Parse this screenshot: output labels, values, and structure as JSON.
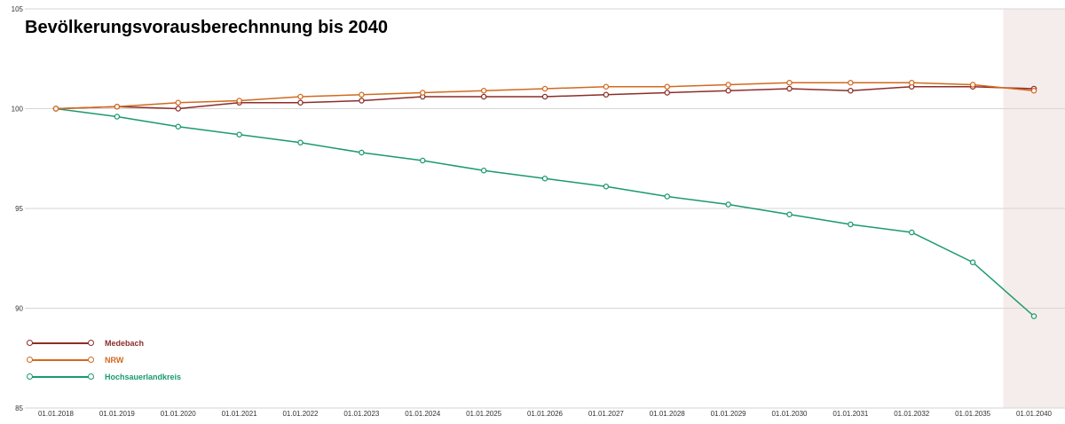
{
  "title": "Bevölkerungsvorausberechnnung bis 2040",
  "chart_data": {
    "type": "line",
    "title": "Bevölkerungsvorausberechnnung bis 2040",
    "xlabel": "",
    "ylabel": "",
    "categories": [
      "01.01.2018",
      "01.01.2019",
      "01.01.2020",
      "01.01.2021",
      "01.01.2022",
      "01.01.2023",
      "01.01.2024",
      "01.01.2025",
      "01.01.2026",
      "01.01.2027",
      "01.01.2028",
      "01.01.2029",
      "01.01.2030",
      "01.01.2031",
      "01.01.2032",
      "01.01.2035",
      "01.01.2040"
    ],
    "ylim": [
      85,
      105
    ],
    "yticks": [
      85,
      90,
      95,
      100,
      105
    ],
    "grid": true,
    "legend_position": "bottom-left",
    "highlight_region": "01.01.2040",
    "highlight_color": "#f5ecec",
    "series": [
      {
        "name": "Medebach",
        "color": "#8b2e2a",
        "values": [
          100,
          100.1,
          100.0,
          100.3,
          100.3,
          100.4,
          100.6,
          100.6,
          100.6,
          100.7,
          100.8,
          100.9,
          101.0,
          100.9,
          101.1,
          101.1,
          101.0
        ]
      },
      {
        "name": "NRW",
        "color": "#d2691e",
        "values": [
          100,
          100.1,
          100.3,
          100.4,
          100.6,
          100.7,
          100.8,
          100.9,
          101.0,
          101.1,
          101.1,
          101.2,
          101.3,
          101.3,
          101.3,
          101.2,
          100.9
        ]
      },
      {
        "name": "Hochsauerlandkreis",
        "color": "#1a9a6c",
        "values": [
          100,
          99.6,
          99.1,
          98.7,
          98.3,
          97.8,
          97.4,
          96.9,
          96.5,
          96.1,
          95.6,
          95.2,
          94.7,
          94.2,
          93.8,
          92.3,
          89.6
        ]
      }
    ]
  }
}
